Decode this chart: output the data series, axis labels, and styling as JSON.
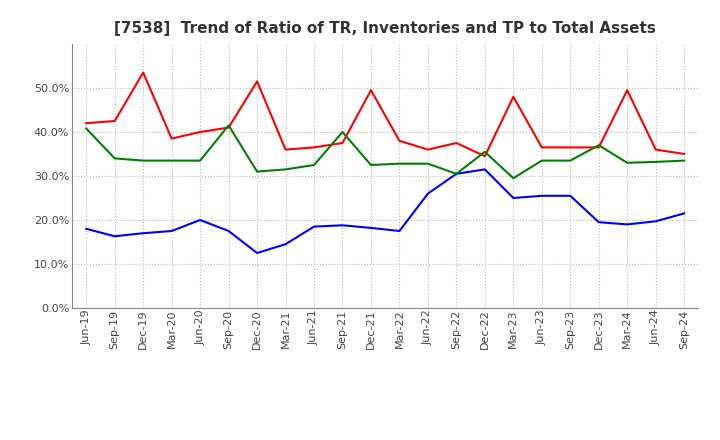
{
  "title": "[7538]  Trend of Ratio of TR, Inventories and TP to Total Assets",
  "x_labels": [
    "Jun-19",
    "Sep-19",
    "Dec-19",
    "Mar-20",
    "Jun-20",
    "Sep-20",
    "Dec-20",
    "Mar-21",
    "Jun-21",
    "Sep-21",
    "Dec-21",
    "Mar-22",
    "Jun-22",
    "Sep-22",
    "Dec-22",
    "Mar-23",
    "Jun-23",
    "Sep-23",
    "Dec-23",
    "Mar-24",
    "Jun-24",
    "Sep-24"
  ],
  "trade_receivables": [
    0.42,
    0.425,
    0.535,
    0.385,
    0.4,
    0.41,
    0.515,
    0.36,
    0.365,
    0.375,
    0.495,
    0.38,
    0.36,
    0.375,
    0.345,
    0.48,
    0.365,
    0.365,
    0.365,
    0.495,
    0.36,
    0.35
  ],
  "inventories": [
    0.18,
    0.163,
    0.17,
    0.175,
    0.2,
    0.175,
    0.125,
    0.145,
    0.185,
    0.188,
    0.182,
    0.175,
    0.26,
    0.305,
    0.315,
    0.25,
    0.255,
    0.255,
    0.195,
    0.19,
    0.197,
    0.215
  ],
  "trade_payables": [
    0.408,
    0.34,
    0.335,
    0.335,
    0.335,
    0.415,
    0.31,
    0.315,
    0.325,
    0.4,
    0.325,
    0.328,
    0.328,
    0.305,
    0.355,
    0.295,
    0.335,
    0.335,
    0.37,
    0.33,
    0.332,
    0.335
  ],
  "tr_color": "#FF0000",
  "inv_color": "#0000FF",
  "tp_color": "#008000",
  "ylim": [
    0.0,
    0.6
  ],
  "yticks": [
    0.0,
    0.1,
    0.2,
    0.3,
    0.4,
    0.5
  ],
  "background_color": "#FFFFFF",
  "grid_color": "#BBBBBB",
  "title_fontsize": 11,
  "tick_fontsize": 8,
  "legend_fontsize": 9,
  "linewidth": 1.5
}
